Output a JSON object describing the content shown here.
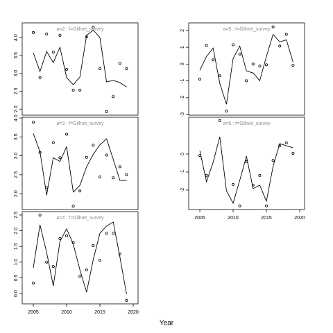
{
  "xlabel": "Year",
  "chart_data": [
    {
      "type": "line",
      "title": "a=2  :  f=Gillnet_survey",
      "x": [
        2005,
        2006,
        2007,
        2008,
        2009,
        2010,
        2011,
        2012,
        2013,
        2014,
        2015,
        2016,
        2017,
        2018,
        2019
      ],
      "series": [
        {
          "kind": "scatter",
          "color": "#000000",
          "values": [
            4.14,
            2.88,
            4.1,
            3.59,
            4.06,
            3.11,
            2.53,
            2.53,
            4.02,
            4.29,
            3.13,
            1.93,
            2.35,
            3.28,
            3.13
          ]
        },
        {
          "kind": "line",
          "color": "#000000",
          "values": [
            3.57,
            3.05,
            3.61,
            3.3,
            3.73,
            2.88,
            2.68,
            2.9,
            4.06,
            4.21,
            4.0,
            2.76,
            2.8,
            2.74,
            2.62
          ]
        }
      ],
      "xlim": [
        2003.33,
        2020.73
      ],
      "ylim": [
        1.83,
        4.41
      ],
      "yticks": [
        {
          "value": 2,
          "label": "2.0"
        },
        2.5,
        {
          "value": 3,
          "label": "3.0"
        },
        3.5,
        {
          "value": 4,
          "label": "4.0"
        }
      ]
    },
    {
      "type": "line",
      "title": "a=3  :  f=Gillnet_survey",
      "x": [
        2005,
        2006,
        2007,
        2008,
        2009,
        2010,
        2011,
        2012,
        2013,
        2014,
        2015,
        2016,
        2017,
        2018,
        2019
      ],
      "series": [
        {
          "kind": "scatter",
          "color": "#000000",
          "values": [
            3.89,
            3.09,
            2.16,
            3.35,
            2.95,
            3.57,
            1.67,
            2.07,
            2.96,
            3.28,
            2.44,
            3.02,
            2.42,
            2.71,
            2.5
          ]
        },
        {
          "kind": "line",
          "color": "#000000",
          "values": [
            3.59,
            3.11,
            1.96,
            2.95,
            2.85,
            3.24,
            2.04,
            2.22,
            2.71,
            3.04,
            3.29,
            3.45,
            2.91,
            2.35,
            2.35
          ]
        }
      ],
      "xlim": [
        2003.33,
        2020.73
      ],
      "ylim": [
        1.58,
        4.02
      ],
      "yticks": [
        {
          "value": 2,
          "label": "2.0"
        },
        2.5,
        {
          "value": 3,
          "label": "3.0"
        },
        3.5,
        {
          "value": 4,
          "label": "4.0"
        }
      ]
    },
    {
      "type": "line",
      "title": "a=4  :  f=Gillnet_survey",
      "x": [
        2005,
        2006,
        2007,
        2008,
        2009,
        2010,
        2011,
        2012,
        2013,
        2014,
        2015,
        2016,
        2017,
        2018,
        2019
      ],
      "series": [
        {
          "kind": "scatter",
          "color": "#000000",
          "values": [
            0.33,
            2.5,
            1.0,
            0.86,
            1.75,
            1.84,
            1.62,
            0.55,
            0.75,
            1.53,
            1.06,
            1.92,
            1.92,
            1.26,
            -0.22
          ]
        },
        {
          "kind": "line",
          "color": "#000000",
          "values": [
            0.82,
            2.19,
            1.31,
            0.24,
            1.66,
            2.06,
            1.57,
            0.75,
            0.04,
            1.08,
            1.92,
            2.15,
            2.28,
            1.17,
            -0.02
          ]
        }
      ],
      "xlim": [
        2003.33,
        2020.73
      ],
      "ylim": [
        -0.33,
        2.61
      ],
      "xticks": [
        2005,
        2010,
        2015,
        2020
      ],
      "yticks": [
        {
          "value": 0,
          "label": "0.0"
        },
        0.5,
        {
          "value": 1,
          "label": "1.0"
        },
        1.5,
        {
          "value": 2,
          "label": "2.0"
        },
        2.5
      ]
    },
    {
      "type": "line",
      "title": "a=5  :  f=Gillnet_survey",
      "x": [
        2005,
        2006,
        2007,
        2008,
        2009,
        2010,
        2011,
        2012,
        2013,
        2014,
        2015,
        2016,
        2017,
        2018,
        2019
      ],
      "series": [
        {
          "kind": "scatter",
          "color": "#000000",
          "values": [
            -0.9,
            1.11,
            0.25,
            -0.7,
            -2.8,
            1.15,
            0.58,
            -0.99,
            0,
            -0.12,
            -0.04,
            2.22,
            1.07,
            1.77,
            -0.08
          ]
        },
        {
          "kind": "line",
          "color": "#000000",
          "values": [
            -0.37,
            0.45,
            0.95,
            -1.15,
            -2.39,
            0.33,
            1.07,
            -0.41,
            -0.53,
            -0.99,
            0.45,
            1.77,
            1.32,
            1.44,
            0.12
          ]
        }
      ],
      "xlim": [
        2003.33,
        2020.73
      ],
      "ylim": [
        -3.04,
        2.45
      ],
      "yticks": [
        -3,
        -2,
        -1,
        0,
        1,
        2
      ]
    },
    {
      "type": "line",
      "title": "a=6  :  f=Gillnet_survey",
      "x": [
        2005,
        2006,
        2007,
        2008,
        2009,
        2010,
        2011,
        2012,
        2013,
        2014,
        2015,
        2016,
        2017,
        2018,
        2019
      ],
      "series": [
        {
          "kind": "scatter",
          "color": "#000000",
          "values": [
            -0.08,
            -1.19,
            null,
            1.85,
            null,
            -1.69,
            -2.88,
            -0.42,
            -1.73,
            -1.19,
            -2.88,
            -0.35,
            0.46,
            0.62,
            0.04
          ]
        },
        {
          "kind": "line",
          "color": "#000000",
          "values": [
            0.19,
            -1.54,
            -0.46,
            0.96,
            -2.04,
            -2.73,
            -1.46,
            -0.12,
            -1.92,
            -1.73,
            -2.62,
            -0.69,
            0.58,
            0.46,
            0.35
          ]
        }
      ],
      "xlim": [
        2003.33,
        2020.73
      ],
      "ylim": [
        -3.08,
        2.04
      ],
      "xticks": [
        2005,
        2010,
        2015,
        2020
      ],
      "yticks": [
        -2,
        -1,
        0
      ]
    }
  ]
}
